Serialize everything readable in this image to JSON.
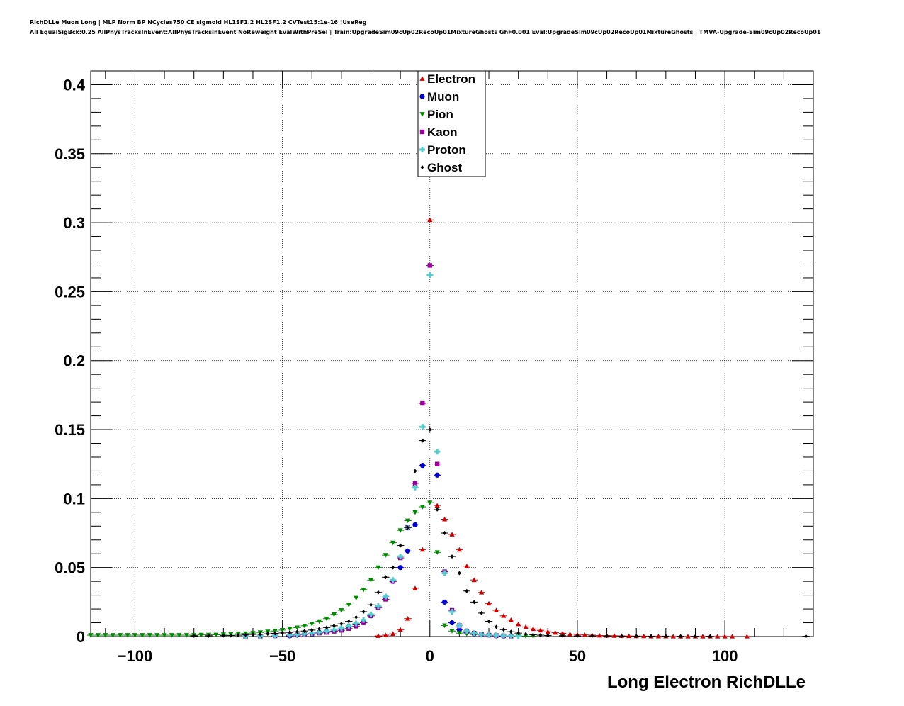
{
  "header": {
    "line1": "RichDLLe Muon Long | MLP Norm BP NCycles750 CE sigmoid HL1SF1.2 HL2SF1.2 CVTest15:1e-16 !UseReg",
    "line2": "All EqualSigBck:0.25 AllPhysTracksInEvent:AllPhysTracksInEvent NoReweight EvalWithPreSel | Train:UpgradeSim09cUp02RecoUp01MixtureGhosts GhF0.001 Eval:UpgradeSim09cUp02RecoUp01MixtureGhosts | TMVA-Upgrade-Sim09cUp02RecoUp01"
  },
  "chart_data": {
    "type": "scatter",
    "title": "",
    "xlabel": "Long Electron RichDLLe",
    "ylabel": "",
    "xlim": [
      -115,
      130
    ],
    "ylim": [
      0,
      0.41
    ],
    "xticks": [
      -100,
      -50,
      0,
      50,
      100
    ],
    "xtick_labels": [
      "−100",
      "−50",
      "0",
      "50",
      "100"
    ],
    "yticks": [
      0,
      0.05,
      0.1,
      0.15,
      0.2,
      0.25,
      0.3,
      0.35,
      0.4
    ],
    "ytick_labels": [
      "0",
      "0.05",
      "0.1",
      "0.15",
      "0.2",
      "0.25",
      "0.3",
      "0.35",
      "0.4"
    ],
    "grid": true,
    "legend_position": "top-center",
    "series": [
      {
        "name": "Electron",
        "color": "#cc0000",
        "marker": "triangle-up",
        "points": [
          [
            -17.5,
            0.0005
          ],
          [
            -15,
            0.001
          ],
          [
            -12.5,
            0.002
          ],
          [
            -10,
            0.005
          ],
          [
            -7.5,
            0.013
          ],
          [
            -5,
            0.035
          ],
          [
            -2.5,
            0.063
          ],
          [
            0,
            0.302
          ],
          [
            2.5,
            0.095
          ],
          [
            5,
            0.085
          ],
          [
            7.5,
            0.074
          ],
          [
            10,
            0.063
          ],
          [
            12.5,
            0.051
          ],
          [
            15,
            0.041
          ],
          [
            17.5,
            0.032
          ],
          [
            20,
            0.024
          ],
          [
            22.5,
            0.019
          ],
          [
            25,
            0.015
          ],
          [
            27.5,
            0.012
          ],
          [
            30,
            0.009
          ],
          [
            32.5,
            0.007
          ],
          [
            35,
            0.0055
          ],
          [
            37.5,
            0.0045
          ],
          [
            40,
            0.0035
          ],
          [
            42.5,
            0.0028
          ],
          [
            45,
            0.0023
          ],
          [
            47.5,
            0.0018
          ],
          [
            50,
            0.0015
          ],
          [
            52.5,
            0.0012
          ],
          [
            55,
            0.001
          ],
          [
            57.5,
            0.0008
          ],
          [
            60,
            0.0007
          ],
          [
            62.5,
            0.0006
          ],
          [
            65,
            0.0005
          ],
          [
            67.5,
            0.0004
          ],
          [
            70,
            0.0003
          ],
          [
            72.5,
            0.0003
          ],
          [
            75,
            0.0002
          ],
          [
            77.5,
            0.0002
          ],
          [
            80,
            0.0002
          ],
          [
            82.5,
            0.0001
          ],
          [
            85,
            0.0001
          ],
          [
            87.5,
            0.0001
          ],
          [
            90,
            0.0001
          ],
          [
            92.5,
            0.0001
          ],
          [
            95,
            0.0001
          ],
          [
            97.5,
            0.0001
          ],
          [
            100,
            0.0001
          ],
          [
            102.5,
            0.0001
          ],
          [
            107.5,
            0.0001
          ]
        ]
      },
      {
        "name": "Muon",
        "color": "#0000cc",
        "marker": "circle",
        "points": [
          [
            -47.5,
            0.0005
          ],
          [
            -45,
            0.001
          ],
          [
            -42.5,
            0.0015
          ],
          [
            -40,
            0.002
          ],
          [
            -37.5,
            0.003
          ],
          [
            -35,
            0.0035
          ],
          [
            -32.5,
            0.004
          ],
          [
            -30,
            0.0055
          ],
          [
            -27.5,
            0.007
          ],
          [
            -25,
            0.0085
          ],
          [
            -22.5,
            0.01
          ],
          [
            -20,
            0.015
          ],
          [
            -17.5,
            0.021
          ],
          [
            -15,
            0.028
          ],
          [
            -12.5,
            0.04
          ],
          [
            -10,
            0.05
          ],
          [
            -7.5,
            0.062
          ],
          [
            -5,
            0.081
          ],
          [
            -2.5,
            0.124
          ],
          [
            2.5,
            0.117
          ],
          [
            5,
            0.025
          ],
          [
            7.5,
            0.01
          ],
          [
            10,
            0.005
          ],
          [
            12.5,
            0.003
          ],
          [
            15,
            0.002
          ],
          [
            17.5,
            0.0015
          ],
          [
            20,
            0.001
          ],
          [
            22.5,
            0.0005
          ],
          [
            25,
            0.0003
          ]
        ]
      },
      {
        "name": "Pion",
        "color": "#008800",
        "marker": "triangle-down",
        "points": [
          [
            -115,
            0.001
          ],
          [
            -112.5,
            0.001
          ],
          [
            -110,
            0.001
          ],
          [
            -107.5,
            0.001
          ],
          [
            -105,
            0.001
          ],
          [
            -102.5,
            0.001
          ],
          [
            -100,
            0.001
          ],
          [
            -97.5,
            0.001
          ],
          [
            -95,
            0.001
          ],
          [
            -92.5,
            0.001
          ],
          [
            -90,
            0.001
          ],
          [
            -87.5,
            0.001
          ],
          [
            -85,
            0.001
          ],
          [
            -82.5,
            0.001
          ],
          [
            -80,
            0.001
          ],
          [
            -77.5,
            0.0012
          ],
          [
            -75,
            0.0012
          ],
          [
            -72.5,
            0.0013
          ],
          [
            -70,
            0.0015
          ],
          [
            -67.5,
            0.0017
          ],
          [
            -65,
            0.002
          ],
          [
            -62.5,
            0.0022
          ],
          [
            -60,
            0.0025
          ],
          [
            -57.5,
            0.003
          ],
          [
            -55,
            0.0035
          ],
          [
            -52.5,
            0.004
          ],
          [
            -50,
            0.0047
          ],
          [
            -47.5,
            0.0055
          ],
          [
            -45,
            0.0065
          ],
          [
            -42.5,
            0.0078
          ],
          [
            -40,
            0.0092
          ],
          [
            -37.5,
            0.011
          ],
          [
            -35,
            0.013
          ],
          [
            -32.5,
            0.016
          ],
          [
            -30,
            0.019
          ],
          [
            -27.5,
            0.023
          ],
          [
            -25,
            0.028
          ],
          [
            -22.5,
            0.034
          ],
          [
            -20,
            0.041
          ],
          [
            -17.5,
            0.05
          ],
          [
            -15,
            0.059
          ],
          [
            -12.5,
            0.068
          ],
          [
            -10,
            0.077
          ],
          [
            -7.5,
            0.084
          ],
          [
            -5,
            0.09
          ],
          [
            -2.5,
            0.094
          ],
          [
            0,
            0.097
          ],
          [
            2.5,
            0.061
          ],
          [
            5,
            0.008
          ],
          [
            7.5,
            0.004
          ],
          [
            10,
            0.0025
          ],
          [
            12.5,
            0.002
          ],
          [
            15,
            0.0015
          ],
          [
            17.5,
            0.001
          ],
          [
            20,
            0.001
          ],
          [
            22.5,
            0.0008
          ],
          [
            25,
            0.0006
          ],
          [
            27.5,
            0.0005
          ],
          [
            30,
            0.0004
          ],
          [
            32.5,
            0.0003
          ],
          [
            35,
            0.0003
          ]
        ]
      },
      {
        "name": "Kaon",
        "color": "#990099",
        "marker": "square",
        "points": [
          [
            -62.5,
            0.0002
          ],
          [
            -57.5,
            0.0003
          ],
          [
            -52.5,
            0.0005
          ],
          [
            -47.5,
            0.001
          ],
          [
            -45,
            0.0012
          ],
          [
            -42.5,
            0.0015
          ],
          [
            -40,
            0.002
          ],
          [
            -37.5,
            0.0025
          ],
          [
            -35,
            0.003
          ],
          [
            -32.5,
            0.0038
          ],
          [
            -30,
            0.0045
          ],
          [
            -27.5,
            0.0058
          ],
          [
            -25,
            0.0075
          ],
          [
            -22.5,
            0.01
          ],
          [
            -20,
            0.015
          ],
          [
            -17.5,
            0.021
          ],
          [
            -15,
            0.027
          ],
          [
            -12.5,
            0.04
          ],
          [
            -10,
            0.057
          ],
          [
            -7.5,
            0.079
          ],
          [
            -5,
            0.111
          ],
          [
            -2.5,
            0.169
          ],
          [
            0,
            0.269
          ],
          [
            2.5,
            0.125
          ],
          [
            5,
            0.047
          ],
          [
            7.5,
            0.019
          ],
          [
            10,
            0.008
          ],
          [
            12.5,
            0.004
          ],
          [
            15,
            0.0025
          ],
          [
            17.5,
            0.0015
          ],
          [
            20,
            0.001
          ],
          [
            22.5,
            0.0007
          ],
          [
            25,
            0.0005
          ],
          [
            27.5,
            0.0003
          ]
        ]
      },
      {
        "name": "Proton",
        "color": "#55cccc",
        "marker": "cross",
        "points": [
          [
            -62.5,
            0.0002
          ],
          [
            -57.5,
            0.0004
          ],
          [
            -52.5,
            0.0007
          ],
          [
            -47.5,
            0.0012
          ],
          [
            -45,
            0.0015
          ],
          [
            -42.5,
            0.002
          ],
          [
            -40,
            0.0025
          ],
          [
            -37.5,
            0.0032
          ],
          [
            -35,
            0.004
          ],
          [
            -32.5,
            0.005
          ],
          [
            -30,
            0.006
          ],
          [
            -27.5,
            0.0075
          ],
          [
            -25,
            0.0095
          ],
          [
            -22.5,
            0.012
          ],
          [
            -20,
            0.016
          ],
          [
            -17.5,
            0.022
          ],
          [
            -15,
            0.029
          ],
          [
            -12.5,
            0.041
          ],
          [
            -10,
            0.058
          ],
          [
            -7.5,
            0.079
          ],
          [
            -5,
            0.108
          ],
          [
            -2.5,
            0.152
          ],
          [
            0,
            0.262
          ],
          [
            2.5,
            0.134
          ],
          [
            5,
            0.046
          ],
          [
            7.5,
            0.018
          ],
          [
            10,
            0.008
          ],
          [
            12.5,
            0.004
          ],
          [
            15,
            0.0025
          ],
          [
            17.5,
            0.0015
          ],
          [
            20,
            0.0012
          ],
          [
            22.5,
            0.0009
          ],
          [
            25,
            0.0007
          ],
          [
            27.5,
            0.0005
          ],
          [
            30,
            0.0004
          ]
        ]
      },
      {
        "name": "Ghost",
        "color": "#000000",
        "marker": "diamond",
        "points": [
          [
            -80,
            0.0005
          ],
          [
            -75,
            0.0006
          ],
          [
            -70,
            0.0007
          ],
          [
            -67.5,
            0.0008
          ],
          [
            -65,
            0.001
          ],
          [
            -62.5,
            0.0012
          ],
          [
            -60,
            0.0015
          ],
          [
            -57.5,
            0.0017
          ],
          [
            -55,
            0.002
          ],
          [
            -52.5,
            0.0023
          ],
          [
            -50,
            0.0026
          ],
          [
            -47.5,
            0.003
          ],
          [
            -45,
            0.0035
          ],
          [
            -42.5,
            0.004
          ],
          [
            -40,
            0.0047
          ],
          [
            -37.5,
            0.0055
          ],
          [
            -35,
            0.0065
          ],
          [
            -32.5,
            0.0078
          ],
          [
            -30,
            0.0092
          ],
          [
            -27.5,
            0.011
          ],
          [
            -25,
            0.014
          ],
          [
            -22.5,
            0.018
          ],
          [
            -20,
            0.023
          ],
          [
            -17.5,
            0.032
          ],
          [
            -15,
            0.043
          ],
          [
            -12.5,
            0.05
          ],
          [
            -10,
            0.066
          ],
          [
            -7.5,
            0.079
          ],
          [
            -5,
            0.12
          ],
          [
            -2.5,
            0.142
          ],
          [
            0,
            0.15
          ],
          [
            2.5,
            0.092
          ],
          [
            5,
            0.075
          ],
          [
            7.5,
            0.058
          ],
          [
            10,
            0.046
          ],
          [
            12.5,
            0.033
          ],
          [
            15,
            0.025
          ],
          [
            17.5,
            0.017
          ],
          [
            20,
            0.011
          ],
          [
            22.5,
            0.007
          ],
          [
            25,
            0.005
          ],
          [
            27.5,
            0.0035
          ],
          [
            30,
            0.0025
          ],
          [
            32.5,
            0.0018
          ],
          [
            35,
            0.0013
          ],
          [
            37.5,
            0.001
          ],
          [
            40,
            0.0008
          ],
          [
            45,
            0.0006
          ],
          [
            50,
            0.0005
          ],
          [
            55,
            0.0004
          ],
          [
            60,
            0.0004
          ],
          [
            65,
            0.0003
          ],
          [
            70,
            0.0003
          ],
          [
            75,
            0.0003
          ],
          [
            80,
            0.0003
          ],
          [
            85,
            0.0002
          ],
          [
            90,
            0.0002
          ],
          [
            95,
            0.0002
          ],
          [
            127.5,
            0.0002
          ]
        ]
      }
    ]
  }
}
